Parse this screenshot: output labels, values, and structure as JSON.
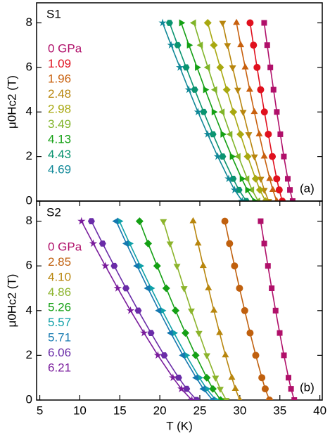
{
  "chart_data": [
    {
      "type": "line",
      "sample_label": "S1",
      "panel_label": "(a)",
      "y_label": "μ0Hc2 (T)",
      "xlim": [
        4.6,
        40.3
      ],
      "ylim": [
        0,
        8.9
      ],
      "yticks": [
        0,
        2,
        4,
        6,
        8
      ],
      "series": [
        {
          "name": "0 GPa",
          "color": "#b0106a",
          "marker": "square",
          "x": [
            36.6,
            36.26,
            35.99,
            35.5,
            35.06,
            34.62,
            34.21,
            33.81,
            33.42,
            33.04
          ],
          "values": [
            0,
            0.5,
            1,
            2,
            3,
            4,
            5,
            6,
            7,
            8
          ]
        },
        {
          "name": "1.09",
          "color": "#e0101e",
          "marker": "circle",
          "x": [
            35.3,
            34.92,
            34.61,
            34.06,
            33.56,
            33.07,
            32.6,
            32.15,
            31.71,
            31.28
          ],
          "values": [
            0,
            0.5,
            1,
            2,
            3,
            4,
            5,
            6,
            7,
            8
          ]
        },
        {
          "name": "1.96",
          "color": "#c8600e",
          "marker": "triangle-up",
          "x": [
            34.6,
            34.12,
            33.74,
            33.05,
            32.42,
            31.81,
            31.23,
            30.67,
            30.11,
            29.58
          ],
          "values": [
            0,
            0.5,
            1,
            2,
            3,
            4,
            5,
            6,
            7,
            8
          ]
        },
        {
          "name": "2.48",
          "color": "#b8860e",
          "marker": "triangle-down",
          "x": [
            33.6,
            33.05,
            32.62,
            31.83,
            31.11,
            30.41,
            29.74,
            29.1,
            28.46,
            27.85
          ],
          "values": [
            0,
            0.5,
            1,
            2,
            3,
            4,
            5,
            6,
            7,
            8
          ]
        },
        {
          "name": "2.98",
          "color": "#a8a810",
          "marker": "diamond",
          "x": [
            33.2,
            32.51,
            31.97,
            30.98,
            30.07,
            29.19,
            28.36,
            27.55,
            26.75,
            25.99
          ],
          "values": [
            0,
            0.5,
            1,
            2,
            3,
            4,
            5,
            6,
            7,
            8
          ]
        },
        {
          "name": "3.49",
          "color": "#80b428",
          "marker": "triangle-left",
          "x": [
            32.3,
            31.53,
            30.93,
            29.83,
            28.82,
            27.84,
            26.91,
            26.01,
            25.12,
            24.27
          ],
          "values": [
            0,
            0.5,
            1,
            2,
            3,
            4,
            5,
            6,
            7,
            8
          ]
        },
        {
          "name": "4.13",
          "color": "#14a014",
          "marker": "triangle-right",
          "x": [
            31.8,
            30.93,
            30.24,
            29.0,
            27.84,
            26.73,
            25.67,
            24.65,
            23.64,
            22.67
          ],
          "values": [
            0,
            0.5,
            1,
            2,
            3,
            4,
            5,
            6,
            7,
            8
          ]
        },
        {
          "name": "4.43",
          "color": "#0a9470",
          "marker": "hexagon",
          "x": [
            30.8,
            29.89,
            29.16,
            27.85,
            26.64,
            25.48,
            24.36,
            23.29,
            22.23,
            21.21
          ],
          "values": [
            0,
            0.5,
            1,
            2,
            3,
            4,
            5,
            6,
            7,
            8
          ]
        },
        {
          "name": "4.69",
          "color": "#108898",
          "marker": "star",
          "x": [
            30.3,
            29.35,
            28.6,
            27.24,
            25.98,
            24.77,
            23.62,
            22.51,
            21.41,
            20.35
          ],
          "values": [
            0,
            0.5,
            1,
            2,
            3,
            4,
            5,
            6,
            7,
            8
          ]
        }
      ]
    },
    {
      "type": "line",
      "sample_label": "S2",
      "panel_label": "(b)",
      "y_label": "μ0Hc2 (T)",
      "x_label": "T (K)",
      "xlim": [
        4.6,
        40.3
      ],
      "ylim": [
        0,
        8.9
      ],
      "xticks": [
        5,
        10,
        15,
        20,
        25,
        30,
        35,
        40
      ],
      "yticks": [
        0,
        2,
        4,
        6,
        8
      ],
      "series": [
        {
          "name": "0 GPa",
          "color": "#b0106a",
          "marker": "square",
          "x": [
            36.8,
            36.4,
            36.08,
            35.51,
            34.98,
            34.47,
            33.98,
            33.51,
            33.05,
            32.6
          ],
          "values": [
            0,
            0.5,
            1,
            2,
            3,
            4,
            5,
            6,
            7,
            8
          ]
        },
        {
          "name": "2.85",
          "color": "#c0600e",
          "marker": "circle",
          "x": [
            33.7,
            33.17,
            32.75,
            31.99,
            31.28,
            30.61,
            29.96,
            29.34,
            28.72,
            28.13
          ],
          "values": [
            0,
            0.5,
            1,
            2,
            3,
            4,
            5,
            6,
            7,
            8
          ]
        },
        {
          "name": "4.10",
          "color": "#b8860e",
          "marker": "triangle-up",
          "x": [
            30.0,
            29.44,
            29.0,
            28.2,
            27.47,
            26.76,
            26.08,
            25.42,
            24.78,
            24.16
          ],
          "values": [
            0,
            0.5,
            1,
            2,
            3,
            4,
            5,
            6,
            7,
            8
          ]
        },
        {
          "name": "4.86",
          "color": "#8cb42c",
          "marker": "triangle-down",
          "x": [
            28.3,
            27.55,
            26.96,
            25.88,
            24.89,
            23.94,
            23.03,
            22.15,
            21.28,
            20.45
          ],
          "values": [
            0,
            0.5,
            1,
            2,
            3,
            4,
            5,
            6,
            7,
            8
          ]
        },
        {
          "name": "5.26",
          "color": "#14a014",
          "marker": "diamond",
          "x": [
            27.6,
            26.63,
            25.87,
            24.48,
            23.2,
            21.97,
            20.8,
            19.66,
            18.54,
            17.47
          ],
          "values": [
            0,
            0.5,
            1,
            2,
            3,
            4,
            5,
            6,
            7,
            8
          ]
        },
        {
          "name": "5.57",
          "color": "#10a0a8",
          "marker": "triangle-right",
          "x": [
            27.0,
            25.85,
            24.94,
            23.29,
            21.77,
            20.31,
            18.91,
            17.56,
            16.23,
            14.95
          ],
          "values": [
            0,
            0.5,
            1,
            2,
            3,
            4,
            5,
            6,
            7,
            8
          ]
        },
        {
          "name": "5.71",
          "color": "#1478b0",
          "marker": "triangle-left",
          "x": [
            26.6,
            25.45,
            24.54,
            22.89,
            21.37,
            19.91,
            18.51,
            17.16,
            15.83,
            14.55
          ],
          "values": [
            0,
            0.5,
            1,
            2,
            3,
            4,
            5,
            6,
            7,
            8
          ]
        },
        {
          "name": "6.06",
          "color": "#6a2ca8",
          "marker": "hexagon",
          "x": [
            24.6,
            23.35,
            22.35,
            20.55,
            18.9,
            17.3,
            15.77,
            14.3,
            12.85,
            11.45
          ],
          "values": [
            0,
            0.5,
            1,
            2,
            3,
            4,
            5,
            6,
            7,
            8
          ]
        },
        {
          "name": "6.21",
          "color": "#7a1c9c",
          "marker": "star",
          "x": [
            24.0,
            22.69,
            21.64,
            19.76,
            18.02,
            16.34,
            14.74,
            13.2,
            11.68,
            10.21
          ],
          "values": [
            0,
            0.5,
            1,
            2,
            3,
            4,
            5,
            6,
            7,
            8
          ]
        }
      ]
    }
  ]
}
